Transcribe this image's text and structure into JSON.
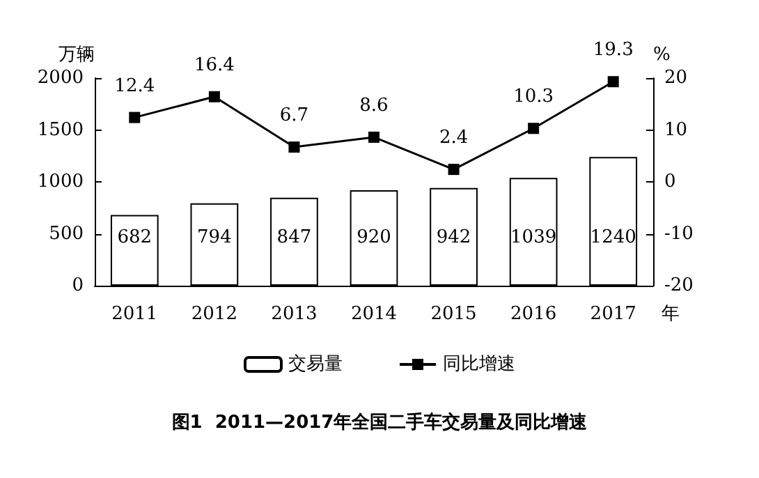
{
  "chart_data": {
    "type": "bar",
    "title": "图1  2011—2017年全国二手车交易量及同比增速",
    "xlabel": "年",
    "ylabel": "万辆",
    "y2label": "%",
    "categories": [
      "2011",
      "2012",
      "2013",
      "2014",
      "2015",
      "2016",
      "2017"
    ],
    "series": [
      {
        "name": "交易量",
        "color": "#ffffff",
        "values": [
          682,
          794,
          847,
          920,
          942,
          1039,
          1240
        ]
      },
      {
        "name": "同比增速",
        "type": "line",
        "axis": "y2",
        "color": "#000000",
        "marker": "square",
        "values": [
          12.4,
          16.4,
          6.7,
          8.6,
          2.4,
          10.3,
          19.3
        ]
      }
    ],
    "ylim": [
      0,
      2000
    ],
    "yticks": [
      0,
      500,
      1000,
      1500,
      2000
    ],
    "y2lim": [
      -20,
      20
    ],
    "y2ticks": [
      -20,
      -10,
      0,
      10,
      20
    ],
    "data_labels": true,
    "legend": "bottom"
  }
}
